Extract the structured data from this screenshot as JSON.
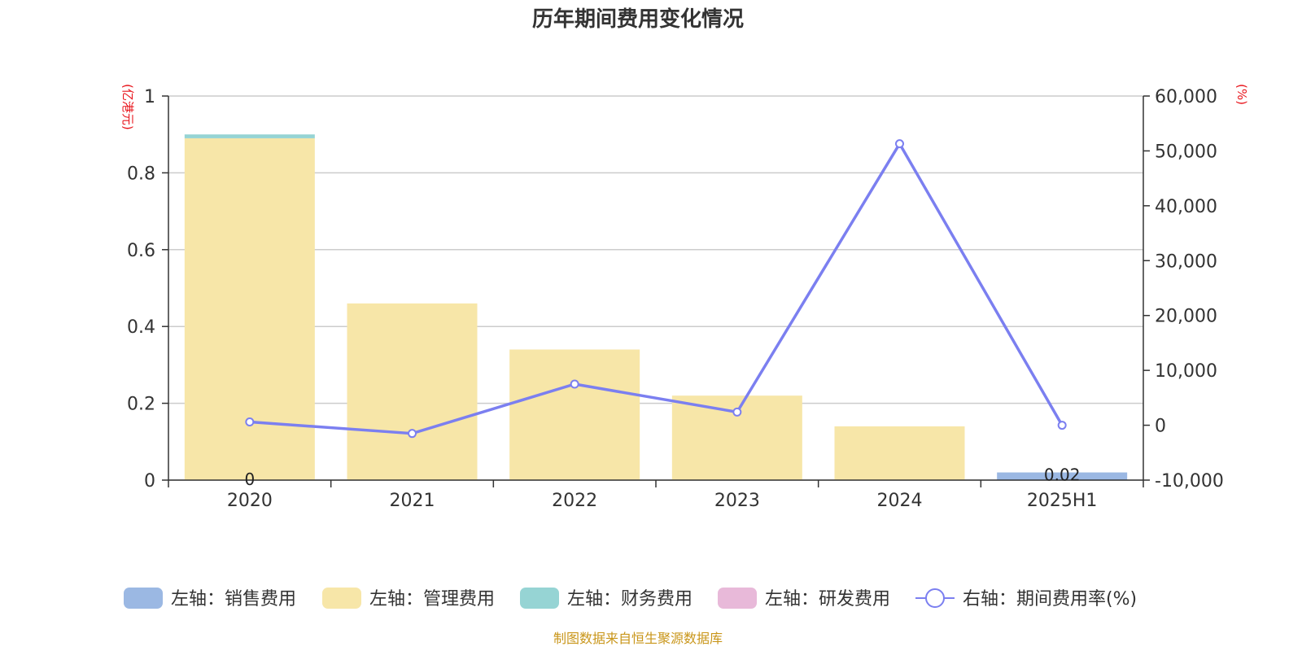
{
  "chart_data": {
    "type": "bar",
    "stacked": true,
    "title": "历年期间费用变化情况",
    "categories": [
      "2020",
      "2021",
      "2022",
      "2023",
      "2024",
      "2025H1"
    ],
    "left_axis": {
      "unit": "(亿港元)",
      "ylim": [
        0,
        1
      ],
      "ticks": [
        "0",
        "0.2",
        "0.4",
        "0.6",
        "0.8",
        "1"
      ]
    },
    "right_axis": {
      "unit": "(%)",
      "ylim": [
        -10000,
        60000
      ],
      "ticks": [
        "-10,000",
        "0",
        "10,000",
        "20,000",
        "30,000",
        "40,000",
        "50,000",
        "60,000"
      ]
    },
    "series": [
      {
        "name": "左轴：销售费用",
        "axis": "left",
        "type": "bar",
        "color": "#9bb8e3",
        "values": [
          0,
          0,
          0,
          0,
          0,
          0.02
        ]
      },
      {
        "name": "左轴：管理费用",
        "axis": "left",
        "type": "bar",
        "color": "#f7e6a8",
        "values": [
          0.89,
          0.46,
          0.34,
          0.22,
          0.14,
          0
        ]
      },
      {
        "name": "左轴：财务费用",
        "axis": "left",
        "type": "bar",
        "color": "#96d4d4",
        "values": [
          0.01,
          0,
          0,
          0,
          0,
          0
        ]
      },
      {
        "name": "左轴：研发费用",
        "axis": "left",
        "type": "bar",
        "color": "#e8b9d9",
        "values": [
          0,
          0,
          0,
          0,
          0,
          0
        ]
      },
      {
        "name": "右轴：期间费用率(%)",
        "axis": "right",
        "type": "line",
        "color": "#7b7ff0",
        "values": [
          600,
          -1500,
          7500,
          2400,
          51300,
          0
        ]
      }
    ],
    "data_labels": [
      {
        "category": "2020",
        "text": "0"
      },
      {
        "category": "2025H1",
        "text": "0.02"
      }
    ],
    "source": "制图数据来自恒生聚源数据库"
  }
}
